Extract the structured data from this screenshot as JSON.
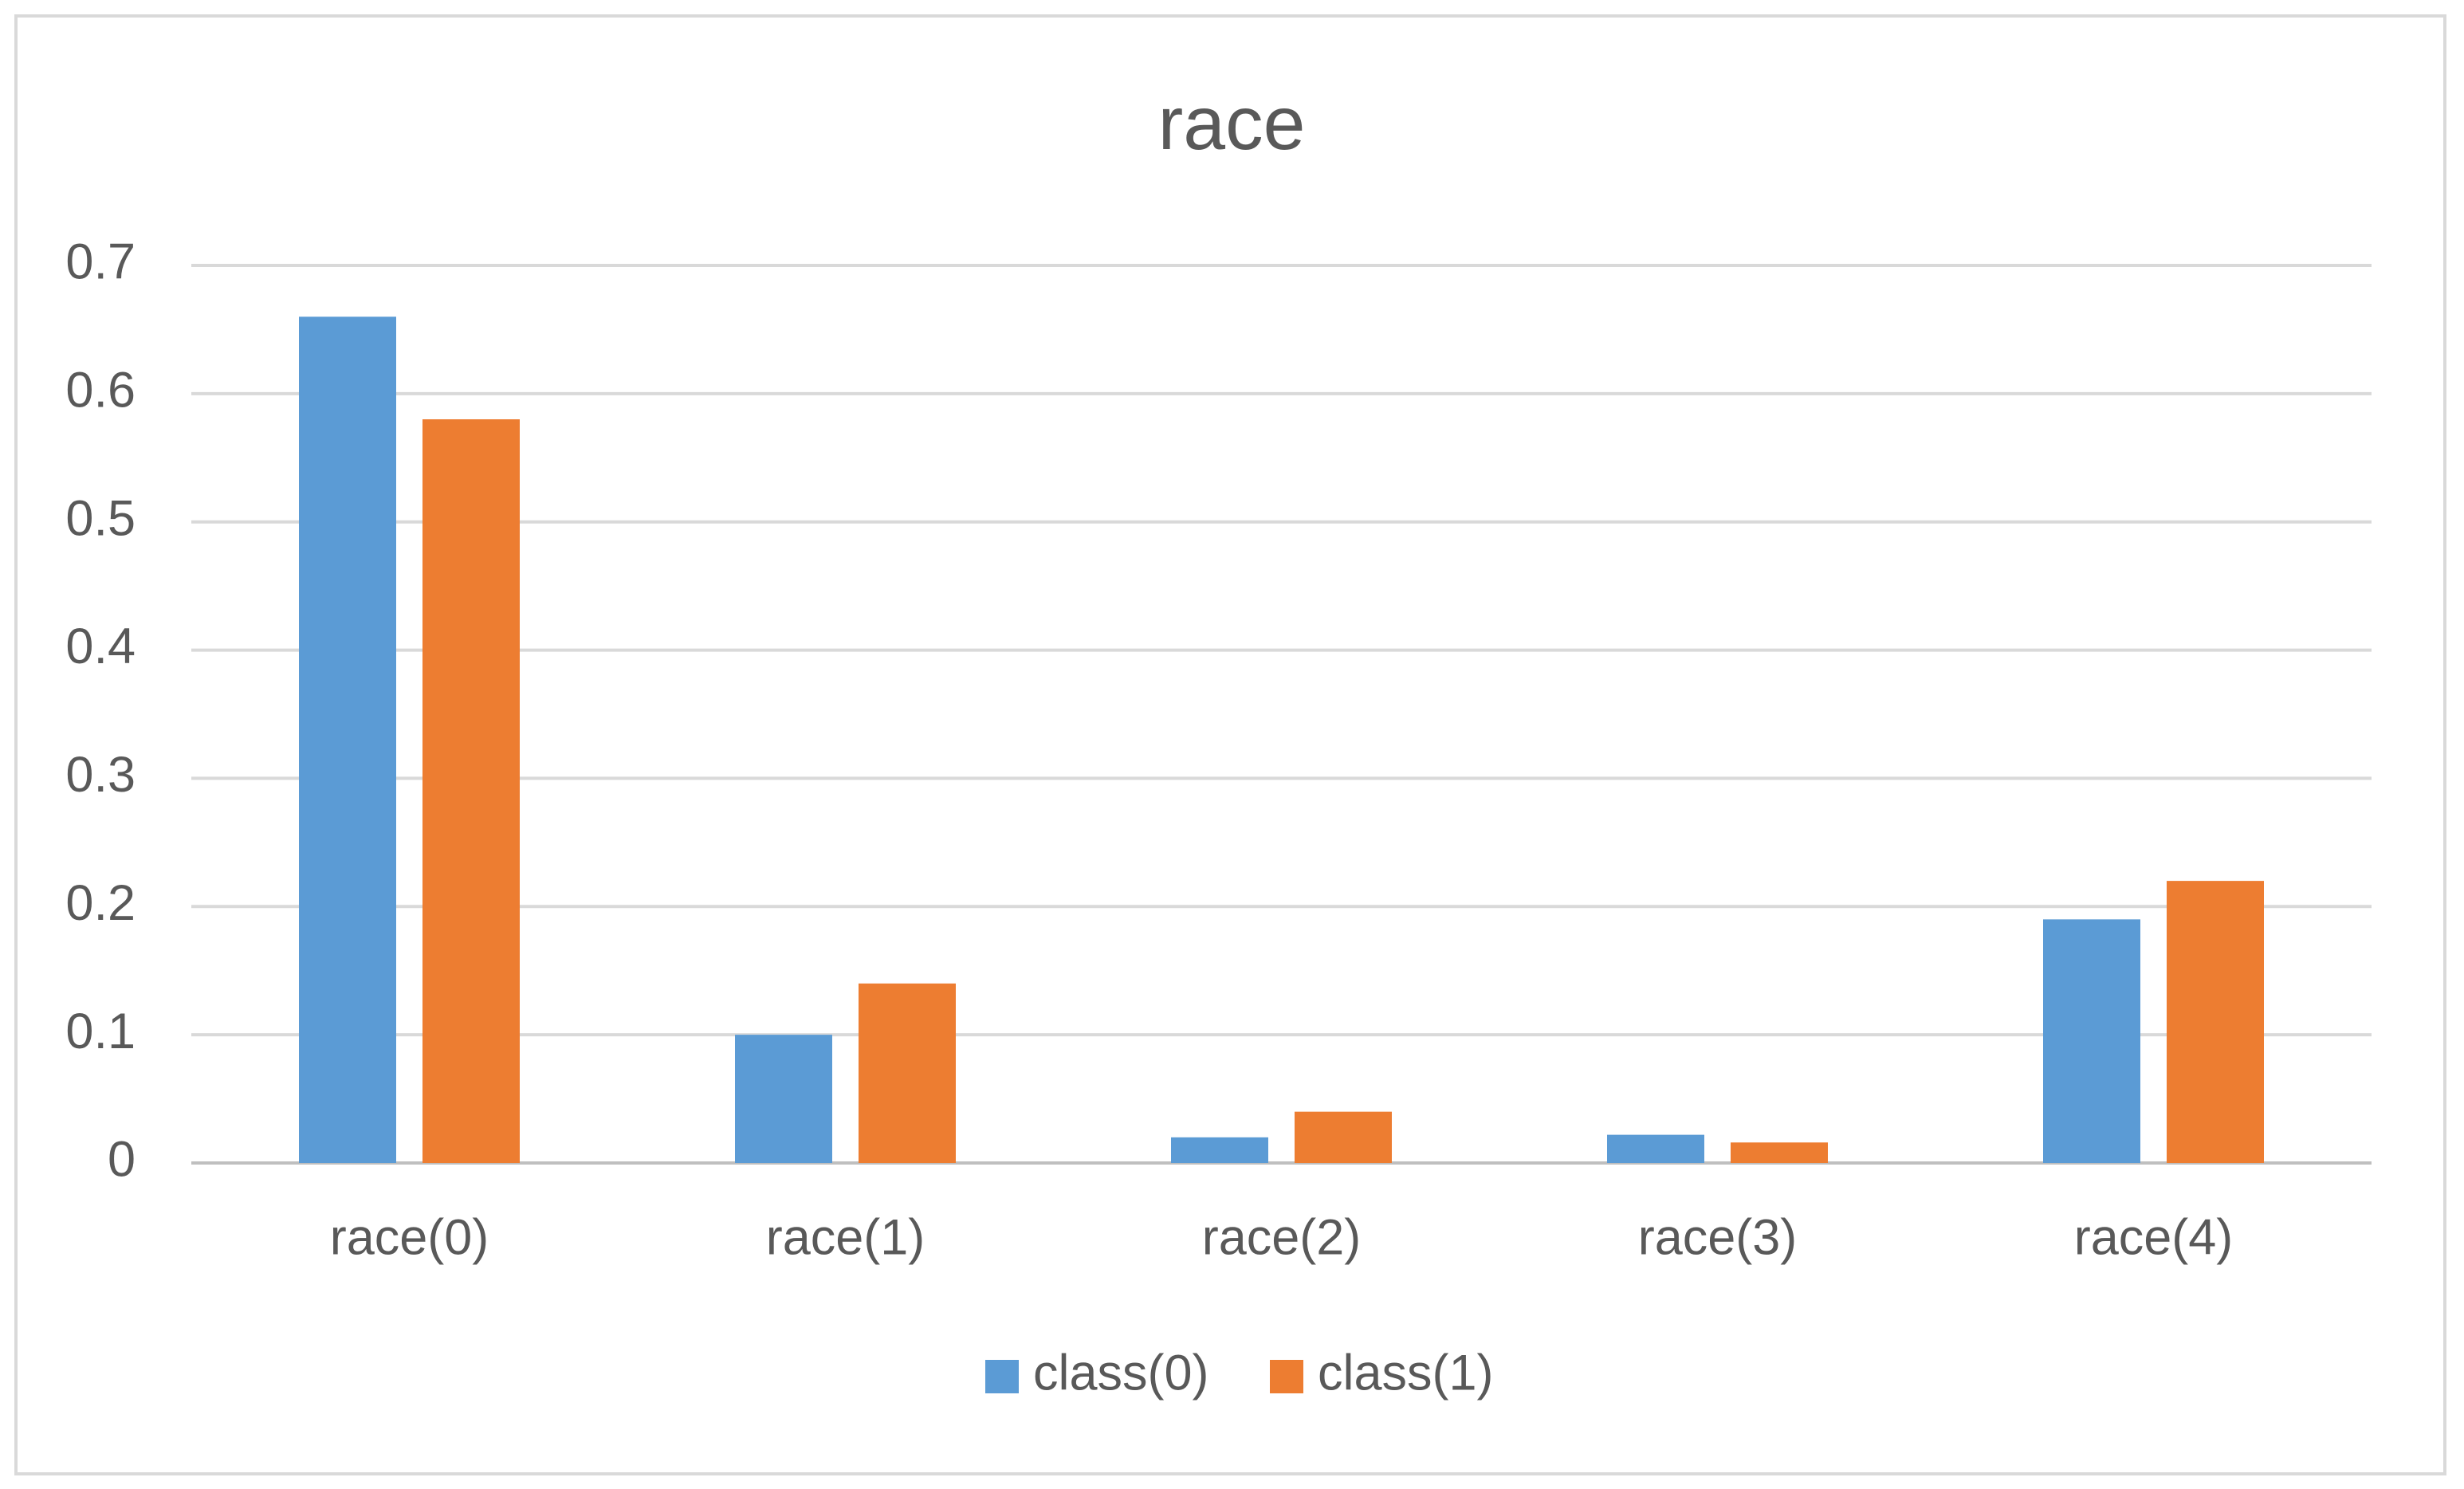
{
  "chart_data": {
    "type": "bar",
    "title": "race",
    "categories": [
      "race(0)",
      "race(1)",
      "race(2)",
      "race(3)",
      "race(4)"
    ],
    "series": [
      {
        "name": "class(0)",
        "color": "#5b9bd5",
        "values": [
          0.66,
          0.1,
          0.02,
          0.022,
          0.19
        ]
      },
      {
        "name": "class(1)",
        "color": "#ed7d31",
        "values": [
          0.58,
          0.14,
          0.04,
          0.016,
          0.22
        ]
      }
    ],
    "ylim": [
      0,
      0.7
    ],
    "yticks": [
      0,
      0.1,
      0.2,
      0.3,
      0.4,
      0.5,
      0.6,
      0.7
    ],
    "grid": true,
    "legend": "bottom"
  }
}
